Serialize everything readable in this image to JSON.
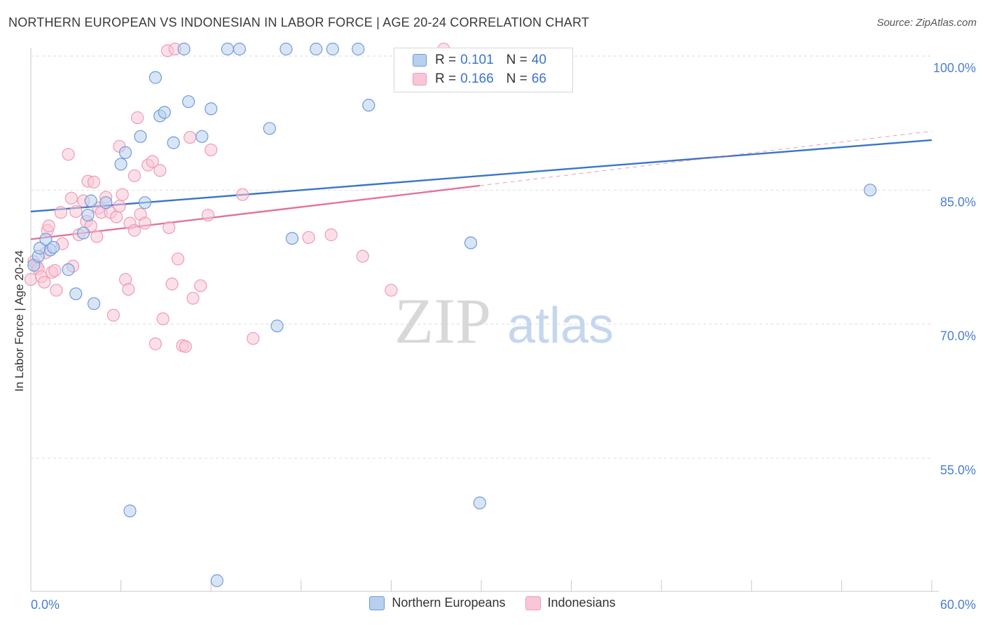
{
  "title": "NORTHERN EUROPEAN VS INDONESIAN IN LABOR FORCE | AGE 20-24 CORRELATION CHART",
  "source": "Source: ZipAtlas.com",
  "watermark": {
    "zip": "ZIP",
    "atlas": "atlas"
  },
  "colors": {
    "blue": "#3a75c8",
    "blue_fill": "#b9cfee",
    "blue_stroke": "#6d9bdc",
    "pink": "#e2729b",
    "pink_fill": "#f9c6d6",
    "pink_stroke": "#ee9bb6",
    "axis_label": "#4a7fcf",
    "grid": "#dddddd"
  },
  "legend": {
    "r_label": "R =",
    "n_label": "N =",
    "rows": [
      {
        "series": "Northern Europeans",
        "r": "0.101",
        "n": "40",
        "color": "blue"
      },
      {
        "series": "Indonesians",
        "r": "0.166",
        "n": "66",
        "color": "pink"
      }
    ]
  },
  "chart_data": {
    "type": "scatter",
    "xlabel": "",
    "ylabel": "In Labor Force | Age 20-24",
    "xlim": [
      0,
      60
    ],
    "ylim": [
      40,
      102
    ],
    "x_tick_labels": [
      "0.0%",
      "60.0%"
    ],
    "y_tick_labels": [
      "100.0%",
      "85.0%",
      "70.0%",
      "55.0%"
    ],
    "y_ticks": [
      100,
      85,
      70,
      55
    ],
    "x_minor_ticks": [
      0,
      6,
      12,
      18,
      24,
      30,
      36,
      42,
      48,
      54,
      60
    ],
    "series": [
      {
        "name": "Northern Europeans",
        "color": "blue",
        "trend": {
          "x0": 0,
          "y0": 82.6,
          "x1": 60,
          "y1": 90.6
        },
        "points": [
          [
            0.2,
            76.6
          ],
          [
            0.5,
            77.6
          ],
          [
            0.6,
            78.5
          ],
          [
            1.0,
            79.5
          ],
          [
            1.3,
            78.3
          ],
          [
            1.5,
            78.6
          ],
          [
            2.5,
            76.1
          ],
          [
            3.0,
            73.4
          ],
          [
            3.5,
            80.2
          ],
          [
            3.8,
            82.2
          ],
          [
            4.0,
            83.8
          ],
          [
            4.2,
            72.3
          ],
          [
            5.0,
            83.6
          ],
          [
            6.0,
            87.9
          ],
          [
            6.3,
            89.2
          ],
          [
            7.3,
            91.0
          ],
          [
            7.6,
            83.6
          ],
          [
            8.3,
            97.6
          ],
          [
            8.6,
            93.3
          ],
          [
            8.9,
            93.7
          ],
          [
            9.5,
            90.3
          ],
          [
            10.2,
            101.3
          ],
          [
            10.5,
            94.9
          ],
          [
            11.4,
            91.0
          ],
          [
            12.0,
            94.1
          ],
          [
            13.1,
            101.3
          ],
          [
            13.9,
            101.3
          ],
          [
            15.9,
            91.9
          ],
          [
            16.4,
            69.8
          ],
          [
            17.0,
            101.3
          ],
          [
            17.4,
            79.6
          ],
          [
            19.0,
            101.3
          ],
          [
            20.1,
            101.3
          ],
          [
            21.8,
            101.3
          ],
          [
            22.5,
            94.5
          ],
          [
            29.3,
            79.1
          ],
          [
            29.9,
            50.0
          ],
          [
            55.9,
            85.0
          ],
          [
            6.6,
            49.1
          ],
          [
            12.4,
            41.3
          ]
        ]
      },
      {
        "name": "Indonesians",
        "color": "pink",
        "trend": {
          "x0": 0,
          "y0": 79.5,
          "x1": 29.9,
          "y1": 85.5,
          "dash_x1": 60,
          "dash_y1": 91.6
        },
        "points": [
          [
            0.0,
            75.0
          ],
          [
            0.2,
            77.0
          ],
          [
            0.4,
            76.5
          ],
          [
            0.5,
            76.2
          ],
          [
            0.7,
            75.3
          ],
          [
            0.9,
            74.7
          ],
          [
            1.0,
            78.0
          ],
          [
            1.1,
            80.5
          ],
          [
            1.2,
            81.0
          ],
          [
            1.4,
            75.8
          ],
          [
            1.6,
            76.0
          ],
          [
            1.7,
            73.8
          ],
          [
            2.0,
            82.5
          ],
          [
            2.1,
            79.0
          ],
          [
            2.5,
            89.0
          ],
          [
            2.7,
            84.1
          ],
          [
            2.8,
            76.5
          ],
          [
            3.0,
            82.6
          ],
          [
            3.2,
            80.0
          ],
          [
            3.5,
            83.8
          ],
          [
            3.7,
            81.5
          ],
          [
            3.8,
            86.0
          ],
          [
            4.0,
            81.0
          ],
          [
            4.2,
            85.9
          ],
          [
            4.4,
            79.8
          ],
          [
            4.5,
            83.0
          ],
          [
            4.7,
            82.5
          ],
          [
            5.0,
            84.2
          ],
          [
            5.3,
            82.5
          ],
          [
            5.5,
            71.0
          ],
          [
            5.7,
            82.0
          ],
          [
            5.9,
            83.2
          ],
          [
            6.1,
            84.5
          ],
          [
            6.3,
            75.0
          ],
          [
            6.5,
            73.9
          ],
          [
            6.6,
            81.3
          ],
          [
            6.9,
            80.5
          ],
          [
            7.1,
            93.1
          ],
          [
            7.3,
            82.3
          ],
          [
            7.6,
            81.3
          ],
          [
            7.8,
            87.8
          ],
          [
            8.1,
            88.2
          ],
          [
            8.3,
            67.8
          ],
          [
            8.6,
            87.2
          ],
          [
            8.8,
            70.6
          ],
          [
            9.1,
            100.6
          ],
          [
            9.2,
            80.8
          ],
          [
            9.4,
            74.5
          ],
          [
            9.6,
            100.9
          ],
          [
            9.8,
            77.3
          ],
          [
            10.1,
            67.6
          ],
          [
            10.3,
            67.5
          ],
          [
            10.6,
            90.9
          ],
          [
            10.8,
            72.9
          ],
          [
            11.3,
            74.3
          ],
          [
            11.8,
            82.2
          ],
          [
            12.0,
            89.5
          ],
          [
            14.1,
            84.5
          ],
          [
            14.8,
            68.4
          ],
          [
            18.5,
            79.7
          ],
          [
            20.0,
            80.0
          ],
          [
            22.1,
            77.6
          ],
          [
            27.5,
            101.3
          ],
          [
            24.0,
            73.8
          ],
          [
            6.9,
            86.6
          ],
          [
            5.9,
            89.9
          ]
        ]
      }
    ]
  }
}
